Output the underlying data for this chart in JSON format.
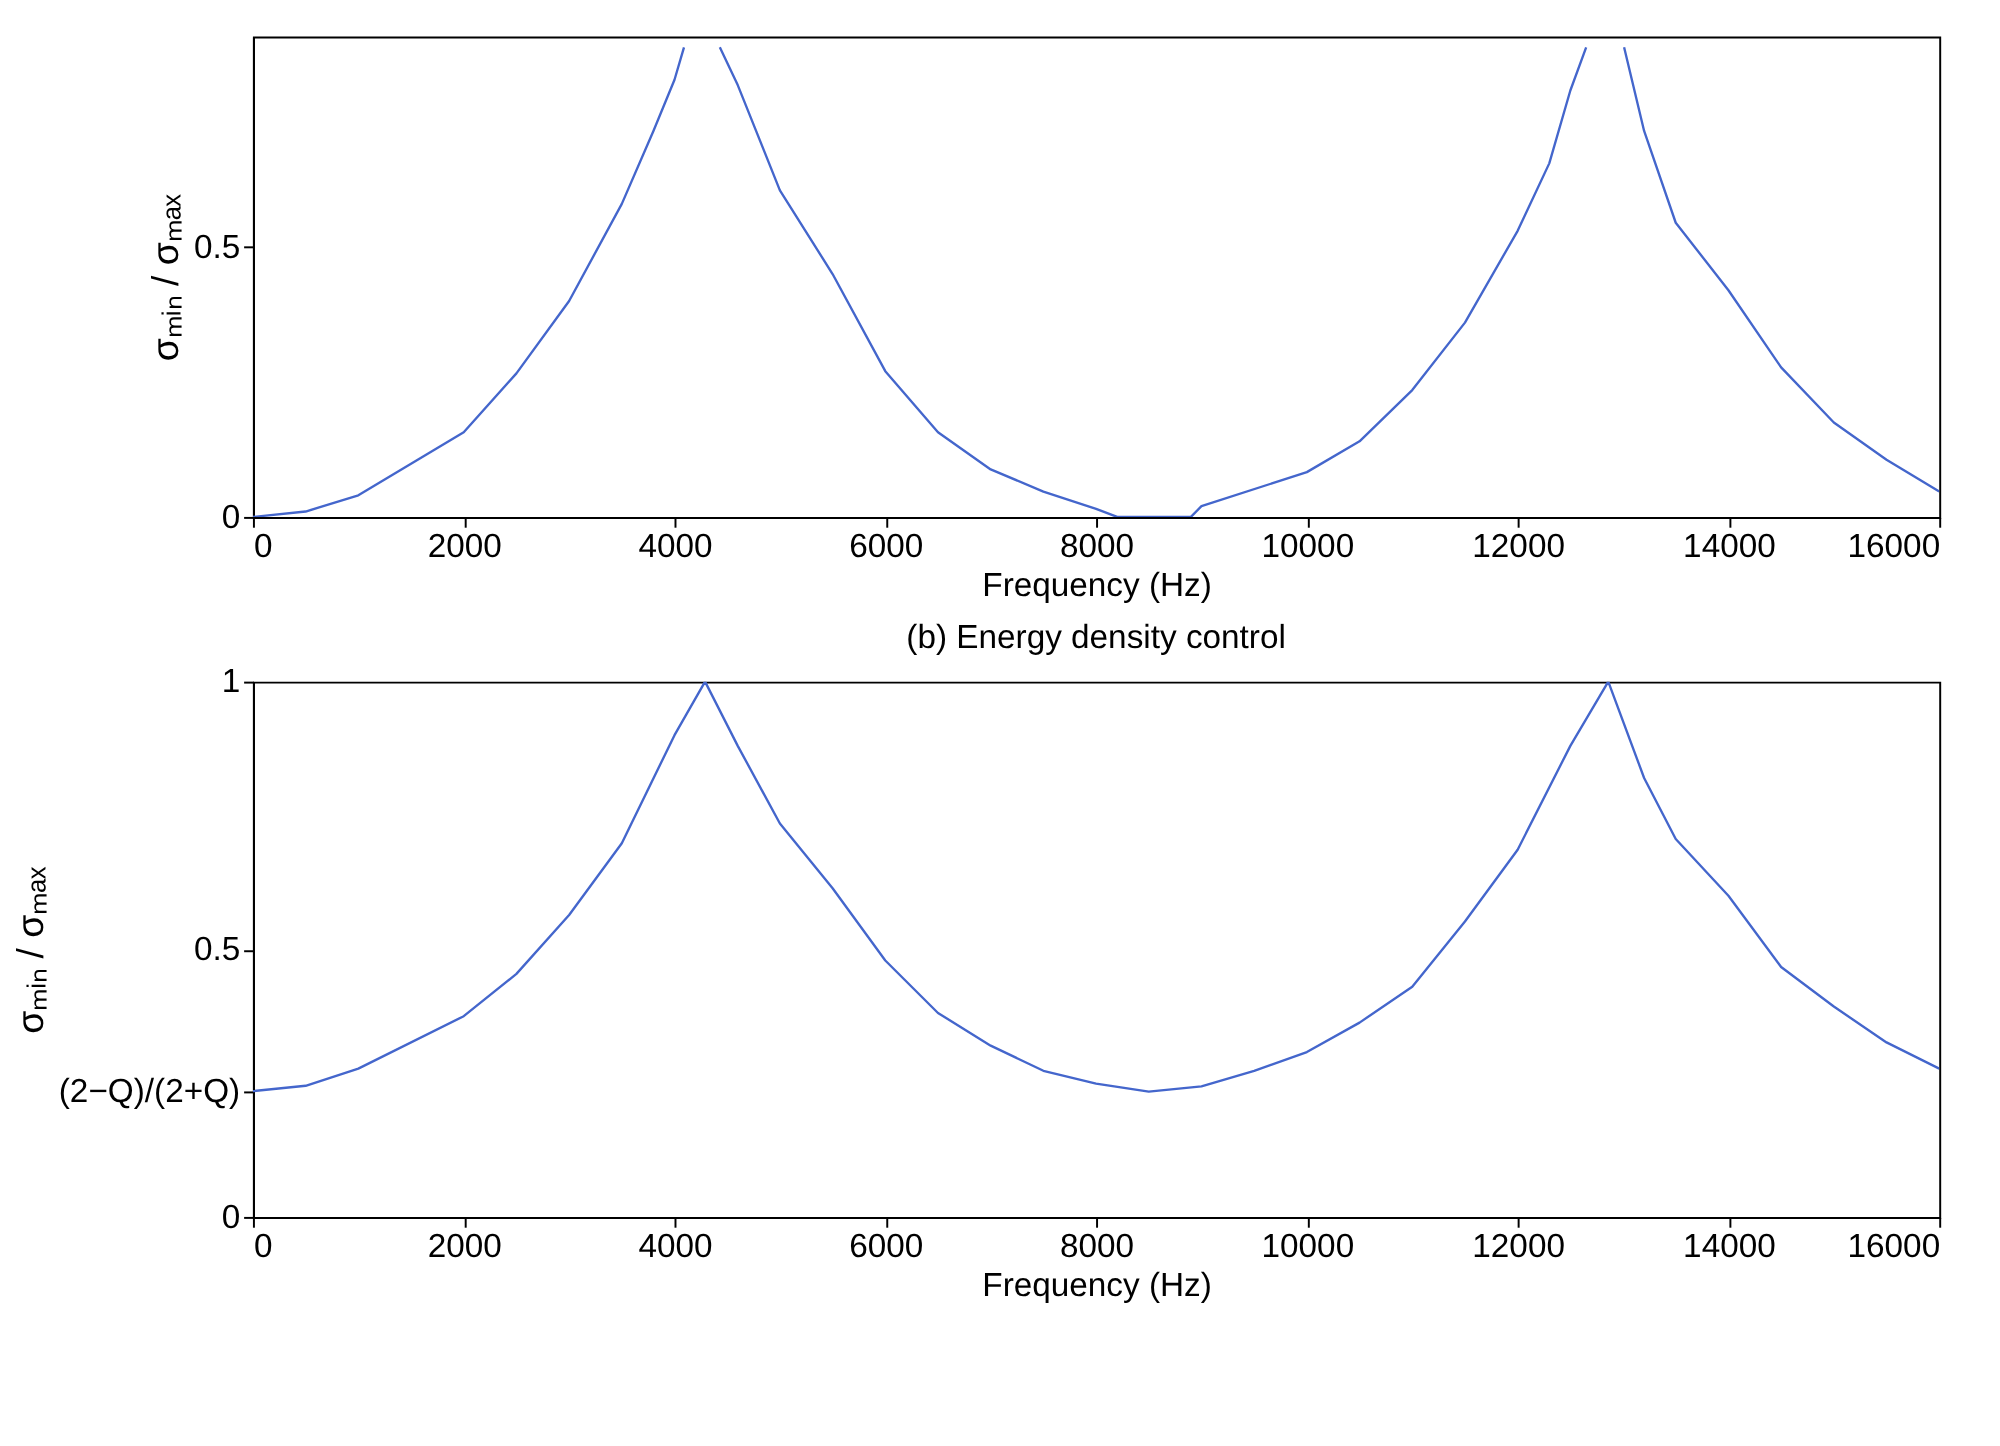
{
  "chart_data": [
    {
      "type": "line",
      "xlabel": "Frequency (Hz)",
      "ylabel": "σₘᵢₙ / σₘₐₓ",
      "xlim": [
        0,
        16000
      ],
      "ylim": [
        0,
        0.89
      ],
      "xticks": [
        0,
        2000,
        4000,
        6000,
        8000,
        10000,
        12000,
        14000,
        16000
      ],
      "yticks": [
        0,
        0.5
      ],
      "grid": false,
      "series": [
        {
          "color": "#4466cc",
          "x": [
            0,
            500,
            1000,
            2000,
            2500,
            3000,
            3500,
            3800,
            4000,
            4090,
            4260,
            4430,
            4600,
            5000,
            5500,
            6000,
            6500,
            7000,
            7500,
            8000,
            8200,
            8900,
            9000,
            10000,
            10500,
            11000,
            11500,
            12000,
            12300,
            12500,
            12650,
            12830,
            13010,
            13200,
            13500,
            14000,
            14500,
            15000,
            15500,
            16000
          ],
          "values": [
            0.0,
            0.01,
            0.04,
            0.157,
            0.266,
            0.4,
            0.58,
            0.715,
            0.81,
            0.87,
            null,
            0.87,
            0.8,
            0.605,
            0.45,
            0.27,
            0.157,
            0.088,
            0.047,
            0.015,
            0.0,
            0.0,
            0.02,
            0.083,
            0.14,
            0.235,
            0.36,
            0.53,
            0.655,
            0.79,
            0.87,
            null,
            0.87,
            0.715,
            0.545,
            0.42,
            0.277,
            0.175,
            0.106,
            0.047
          ]
        }
      ]
    },
    {
      "type": "line",
      "title": "(b) Energy density control",
      "xlabel": "Frequency (Hz)",
      "ylabel": "σₘᵢₙ / σₘₐₓ",
      "xlim": [
        0,
        16000
      ],
      "ylim": [
        0,
        1
      ],
      "xticks": [
        0,
        2000,
        4000,
        6000,
        8000,
        10000,
        12000,
        14000,
        16000
      ],
      "yticks": [
        0,
        {
          "value": 0.235,
          "label": "(2−Q)/(2+Q)"
        },
        0.5,
        1
      ],
      "grid": false,
      "series": [
        {
          "color": "#4466cc",
          "x": [
            0,
            500,
            1000,
            2000,
            2500,
            3000,
            3500,
            4000,
            4290,
            4600,
            5000,
            5500,
            6000,
            6500,
            7000,
            7500,
            8000,
            8500,
            9000,
            9500,
            10000,
            10500,
            11000,
            11500,
            12000,
            12500,
            12860,
            13200,
            13500,
            14000,
            14500,
            15000,
            15500,
            16000
          ],
          "values": [
            0.235,
            0.245,
            0.277,
            0.375,
            0.454,
            0.564,
            0.698,
            0.9,
            1.0,
            0.88,
            0.735,
            0.614,
            0.479,
            0.381,
            0.32,
            0.273,
            0.249,
            0.234,
            0.244,
            0.273,
            0.308,
            0.363,
            0.43,
            0.552,
            0.686,
            0.88,
            1.0,
            0.82,
            0.706,
            0.6,
            0.467,
            0.393,
            0.326,
            0.277
          ]
        }
      ]
    }
  ]
}
